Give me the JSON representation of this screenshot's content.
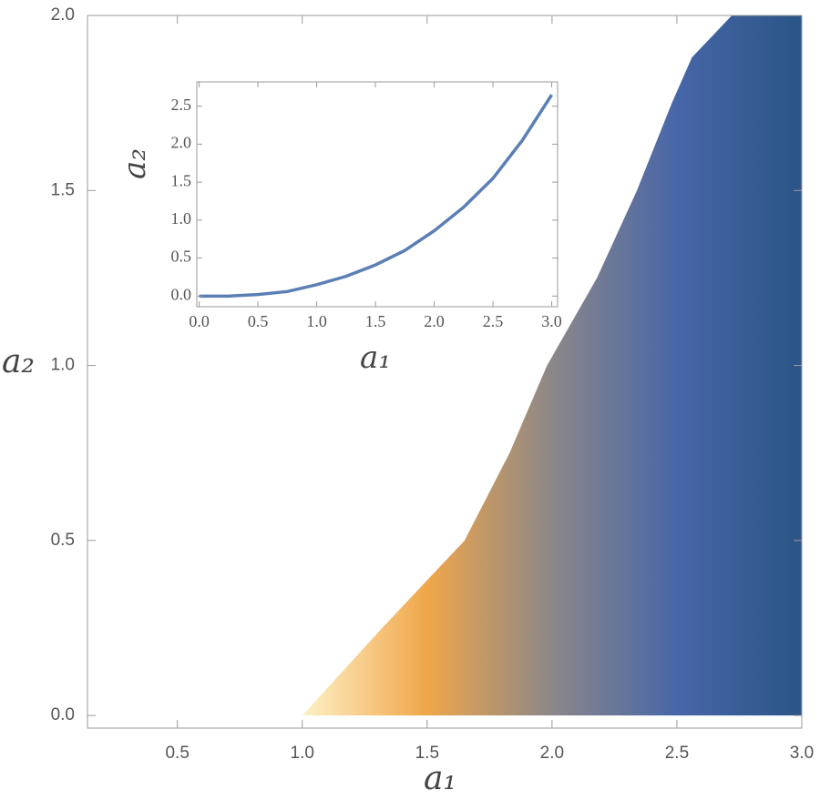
{
  "chart_data": [
    {
      "type": "region",
      "x_label": "a₁",
      "y_label": "a₂",
      "x": [
        1.0,
        1.32,
        1.65,
        1.83,
        1.98,
        2.18,
        2.34,
        2.48,
        2.56,
        2.72
      ],
      "y": [
        0.0,
        0.25,
        0.5,
        0.75,
        1.0,
        1.25,
        1.5,
        1.75,
        1.88,
        2.0
      ],
      "colors": [
        "#fdf1c6",
        "#f0a64a",
        "#8c8789",
        "#4766a8",
        "#2a5586"
      ],
      "xlim": [
        0.14,
        3.0
      ],
      "ylim": [
        -0.036,
        2.0
      ],
      "xticks": [
        {
          "value": 0.5,
          "label": "0.5"
        },
        {
          "value": 1.0,
          "label": "1.0"
        },
        {
          "value": 1.5,
          "label": "1.5"
        },
        {
          "value": 2.0,
          "label": "2.0"
        },
        {
          "value": 2.5,
          "label": "2.5"
        },
        {
          "value": 3.0,
          "label": "3.0"
        }
      ],
      "yticks": [
        {
          "value": 0.0,
          "label": "0.0"
        },
        {
          "value": 0.5,
          "label": "0.5"
        },
        {
          "value": 1.0,
          "label": "1.0"
        },
        {
          "value": 1.5,
          "label": "1.5"
        },
        {
          "value": 2.0,
          "label": "2.0"
        }
      ]
    },
    {
      "type": "line",
      "x_label": "a₁",
      "y_label": "a₂",
      "x": [
        0,
        0.25,
        0.5,
        0.75,
        1.0,
        1.25,
        1.5,
        1.75,
        2.0,
        2.25,
        2.5,
        2.75,
        3.0
      ],
      "y": [
        0,
        0.0,
        0.02,
        0.06,
        0.15,
        0.26,
        0.41,
        0.6,
        0.86,
        1.17,
        1.55,
        2.05,
        2.65
      ],
      "color": "#5b7fb5",
      "xlim": [
        -0.02,
        3.05
      ],
      "ylim": [
        -0.14,
        2.82
      ],
      "xticks": [
        {
          "value": 0.0,
          "label": "0.0"
        },
        {
          "value": 0.5,
          "label": "0.5"
        },
        {
          "value": 1.0,
          "label": "1.0"
        },
        {
          "value": 1.5,
          "label": "1.5"
        },
        {
          "value": 2.0,
          "label": "2.0"
        },
        {
          "value": 2.5,
          "label": "2.5"
        },
        {
          "value": 3.0,
          "label": "3.0"
        }
      ],
      "yticks": [
        {
          "value": 0.0,
          "label": "0.0"
        },
        {
          "value": 0.5,
          "label": "0.5"
        },
        {
          "value": 1.0,
          "label": "1.0"
        },
        {
          "value": 1.5,
          "label": "1.5"
        },
        {
          "value": 2.0,
          "label": "2.0"
        },
        {
          "value": 2.5,
          "label": "2.5"
        }
      ]
    }
  ]
}
